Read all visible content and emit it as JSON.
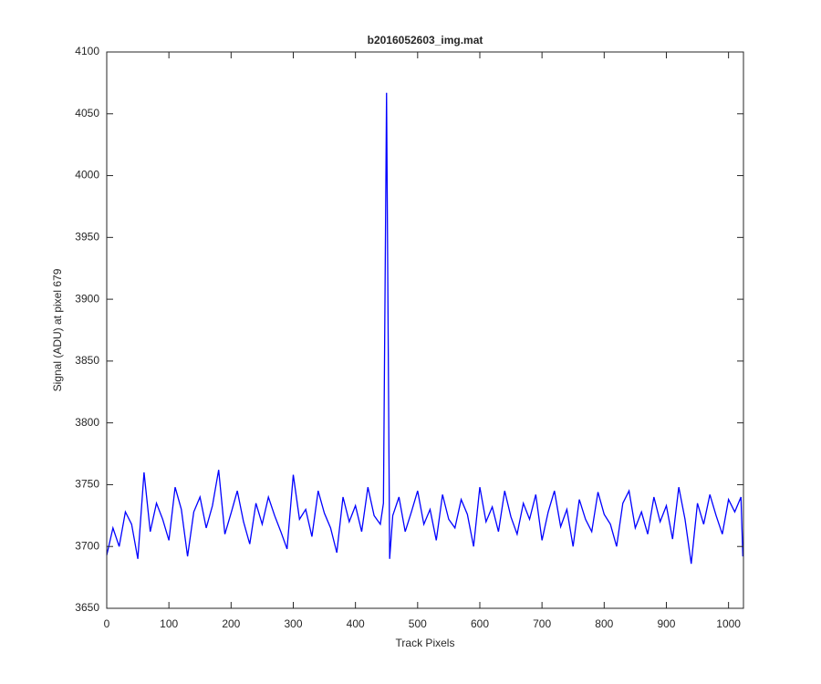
{
  "chart_data": {
    "type": "line",
    "title": "b2016052603_img.mat",
    "x_label": "Track Pixels",
    "y_label": "Signal (ADU) at pixel 679",
    "x": [
      0,
      10,
      20,
      30,
      40,
      50,
      60,
      70,
      80,
      90,
      100,
      110,
      120,
      130,
      140,
      150,
      160,
      170,
      180,
      190,
      200,
      210,
      220,
      230,
      240,
      250,
      260,
      270,
      280,
      290,
      300,
      310,
      320,
      330,
      340,
      350,
      360,
      370,
      380,
      390,
      400,
      410,
      420,
      430,
      440,
      445,
      450,
      455,
      460,
      470,
      480,
      490,
      500,
      510,
      520,
      530,
      540,
      550,
      560,
      570,
      580,
      590,
      600,
      610,
      620,
      630,
      640,
      650,
      660,
      670,
      680,
      690,
      700,
      710,
      720,
      730,
      740,
      750,
      760,
      770,
      780,
      790,
      800,
      810,
      820,
      830,
      840,
      850,
      860,
      870,
      880,
      890,
      900,
      910,
      920,
      930,
      940,
      950,
      960,
      970,
      980,
      990,
      1000,
      1010,
      1020,
      1023
    ],
    "series": [
      {
        "name": "signal",
        "color": "#0000ff",
        "values": [
          3693,
          3715,
          3700,
          3728,
          3718,
          3690,
          3760,
          3712,
          3735,
          3722,
          3705,
          3748,
          3730,
          3692,
          3728,
          3740,
          3715,
          3733,
          3762,
          3710,
          3727,
          3745,
          3720,
          3702,
          3735,
          3718,
          3740,
          3725,
          3712,
          3698,
          3758,
          3722,
          3730,
          3708,
          3745,
          3727,
          3715,
          3695,
          3740,
          3720,
          3733,
          3712,
          3748,
          3725,
          3718,
          3735,
          4067,
          3690,
          3725,
          3740,
          3712,
          3728,
          3745,
          3718,
          3730,
          3705,
          3742,
          3722,
          3715,
          3738,
          3726,
          3700,
          3748,
          3720,
          3732,
          3712,
          3745,
          3724,
          3710,
          3735,
          3722,
          3742,
          3705,
          3728,
          3745,
          3716,
          3730,
          3700,
          3738,
          3722,
          3712,
          3744,
          3726,
          3718,
          3700,
          3735,
          3745,
          3715,
          3728,
          3710,
          3740,
          3720,
          3733,
          3706,
          3748,
          3722,
          3686,
          3735,
          3718,
          3742,
          3725,
          3710,
          3738,
          3728,
          3740,
          3692
        ]
      }
    ],
    "xlim": [
      0,
      1024
    ],
    "ylim": [
      3650,
      4100
    ],
    "xticks": [
      0,
      100,
      200,
      300,
      400,
      500,
      600,
      700,
      800,
      900,
      1000
    ],
    "yticks": [
      3650,
      3700,
      3750,
      3800,
      3850,
      3900,
      3950,
      4000,
      4050,
      4100
    ]
  }
}
